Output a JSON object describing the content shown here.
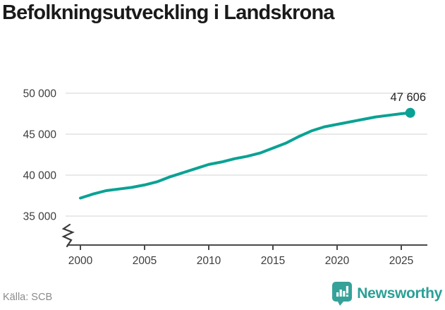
{
  "header": {
    "title": "Befolkningsutveckling i Landskrona"
  },
  "chart_data": {
    "type": "line",
    "title": "Befolkningsutveckling i Landskrona",
    "x": [
      2000,
      2001,
      2002,
      2003,
      2004,
      2005,
      2006,
      2007,
      2008,
      2009,
      2010,
      2011,
      2012,
      2013,
      2014,
      2015,
      2016,
      2017,
      2018,
      2019,
      2020,
      2021,
      2022,
      2023,
      2024,
      2025,
      2025.7
    ],
    "values": [
      37200,
      37700,
      38100,
      38300,
      38500,
      38800,
      39200,
      39800,
      40300,
      40800,
      41300,
      41600,
      42000,
      42300,
      42700,
      43300,
      43900,
      44700,
      45400,
      45900,
      46200,
      46500,
      46800,
      47100,
      47300,
      47500,
      47606
    ],
    "series_name": "Befolkning",
    "latest_value": 47606,
    "latest_label": "47 606",
    "ylim": [
      35000,
      50000
    ],
    "axis_break": true,
    "grid": true,
    "legend": "none",
    "yticks": [
      {
        "value": 50000,
        "label": "50 000"
      },
      {
        "value": 45000,
        "label": "45 000"
      },
      {
        "value": 40000,
        "label": "40 000"
      },
      {
        "value": 35000,
        "label": "35 000"
      }
    ],
    "xticks": [
      {
        "value": 2000,
        "label": "2000"
      },
      {
        "value": 2005,
        "label": "2005"
      },
      {
        "value": 2010,
        "label": "2010"
      },
      {
        "value": 2015,
        "label": "2015"
      },
      {
        "value": 2020,
        "label": "2020"
      },
      {
        "value": 2025,
        "label": "2025"
      }
    ],
    "colors": {
      "line": "#0aa294",
      "grid": "#dcdcdc",
      "axis": "#4a4a4a",
      "tick_text": "#3c3c3c",
      "label_text": "#222222"
    }
  },
  "footer": {
    "source": "Källa: SCB",
    "logo_text": "Newsworthy",
    "logo_color": "#2aa096",
    "logo_icon": "bar-chart-speech-bubble-icon"
  }
}
